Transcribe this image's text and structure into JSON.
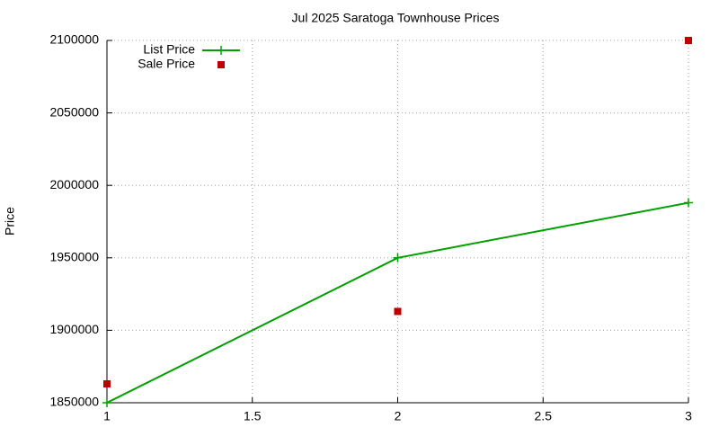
{
  "chart_data": {
    "type": "line",
    "title": "Jul 2025 Saratoga Townhouse Prices",
    "ylabel": "Price",
    "x": [
      1,
      2,
      3
    ],
    "series": [
      {
        "name": "List Price",
        "color": "#00a000",
        "style": "linespoints",
        "values": [
          1850000,
          1950000,
          1988000
        ]
      },
      {
        "name": "Sale Price",
        "color": "#c00000",
        "style": "points",
        "values": [
          1863000,
          1913000,
          2100000
        ]
      }
    ],
    "xlim": [
      1,
      3
    ],
    "xticks": [
      1,
      1.5,
      2,
      2.5,
      3
    ],
    "ylim": [
      1850000,
      2100000
    ],
    "yticks": [
      1850000,
      1900000,
      1950000,
      2000000,
      2050000,
      2100000
    ],
    "grid": true,
    "legend": "top-left"
  }
}
